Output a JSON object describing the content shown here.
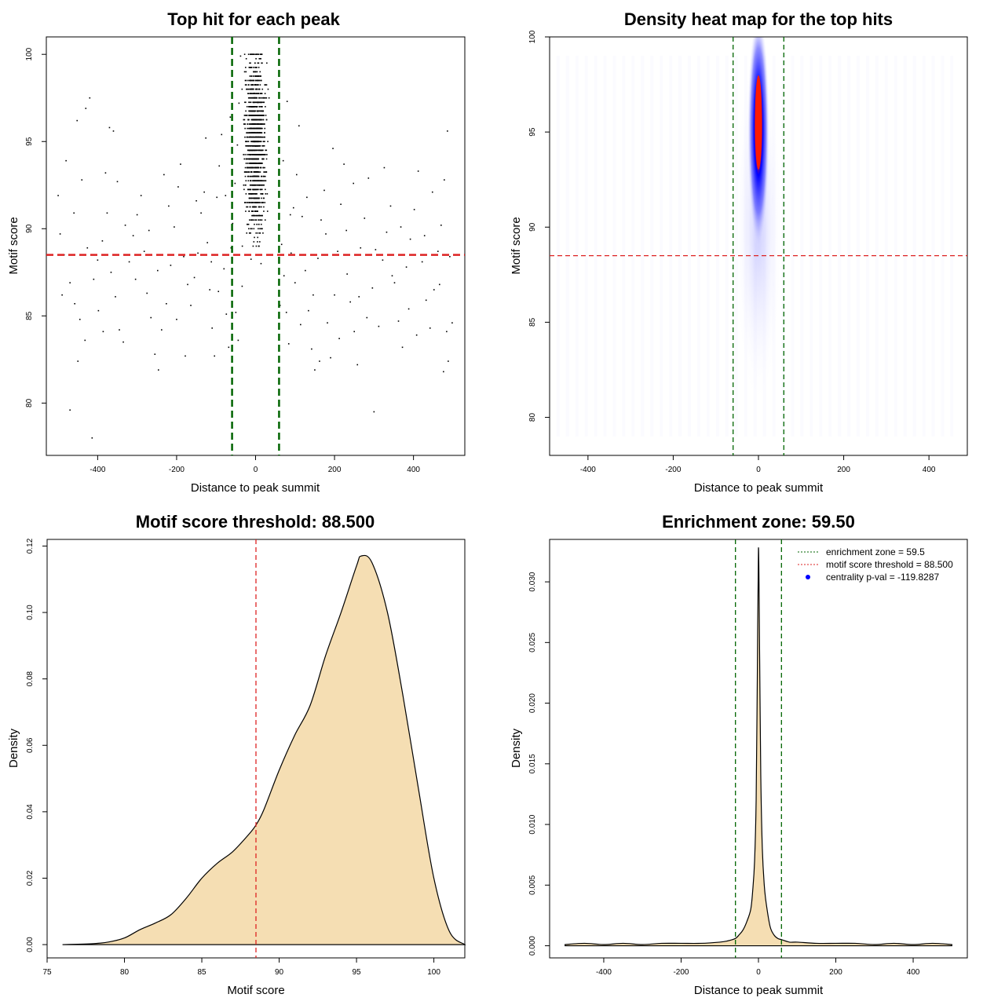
{
  "colors": {
    "zone_line": "#006400",
    "threshold_line": "#dd2222",
    "density_fill": "#f5deb3",
    "points": "#000000",
    "heat_low": "#ffffff",
    "heat_mid": "#0000ff",
    "heat_high": "#ff0000",
    "legend_dot": "#0000ff"
  },
  "chart_data": [
    {
      "type": "scatter",
      "title": "Top hit for each peak",
      "xlabel": "Distance to peak summit",
      "ylabel": "Motif score",
      "xlim": [
        -530,
        530
      ],
      "ylim": [
        77,
        101
      ],
      "xticks": [
        -400,
        -200,
        0,
        200,
        400
      ],
      "yticks": [
        80,
        85,
        90,
        95,
        100
      ],
      "vlines": [
        -59.5,
        59.5
      ],
      "hline": 88.5,
      "points": [
        [
          -470,
          79.6
        ],
        [
          -414,
          78
        ],
        [
          -450,
          82.4
        ],
        [
          -430,
          96.9
        ],
        [
          -420,
          97.5
        ],
        [
          -452,
          96.2
        ],
        [
          -380,
          93.2
        ],
        [
          -360,
          95.6
        ],
        [
          -370,
          95.8
        ],
        [
          -480,
          93.9
        ],
        [
          -500,
          91.9
        ],
        [
          -495,
          89.7
        ],
        [
          -485,
          88.5
        ],
        [
          -470,
          86.9
        ],
        [
          -458,
          85.7
        ],
        [
          -445,
          84.8
        ],
        [
          -432,
          83.6
        ],
        [
          -410,
          87.1
        ],
        [
          -400,
          88.2
        ],
        [
          -388,
          89.3
        ],
        [
          -376,
          90.9
        ],
        [
          -366,
          87.5
        ],
        [
          -355,
          86.1
        ],
        [
          -345,
          84.2
        ],
        [
          -335,
          83.5
        ],
        [
          -320,
          88.1
        ],
        [
          -310,
          89.6
        ],
        [
          -300,
          90.8
        ],
        [
          -290,
          91.9
        ],
        [
          -282,
          88.7
        ],
        [
          -275,
          86.3
        ],
        [
          -265,
          84.9
        ],
        [
          -255,
          82.8
        ],
        [
          -246,
          81.9
        ],
        [
          -238,
          84.2
        ],
        [
          -226,
          85.7
        ],
        [
          -215,
          87.9
        ],
        [
          -206,
          90.1
        ],
        [
          -196,
          92.4
        ],
        [
          -190,
          93.7
        ],
        [
          -182,
          88.4
        ],
        [
          -172,
          86.8
        ],
        [
          -164,
          85.6
        ],
        [
          -155,
          87.2
        ],
        [
          -146,
          88.6
        ],
        [
          -138,
          90.9
        ],
        [
          -130,
          92.1
        ],
        [
          -122,
          89.2
        ],
        [
          -116,
          86.5
        ],
        [
          -110,
          84.3
        ],
        [
          -104,
          82.7
        ],
        [
          -98,
          91.8
        ],
        [
          -92,
          93.6
        ],
        [
          -86,
          95.4
        ],
        [
          -80,
          87.7
        ],
        [
          -74,
          85.1
        ],
        [
          -68,
          83.2
        ],
        [
          -62,
          88.9
        ],
        [
          -58,
          90.3
        ],
        [
          -52,
          92.6
        ],
        [
          -46,
          94.8
        ],
        [
          -42,
          97.2
        ],
        [
          -38,
          99.9
        ],
        [
          -34,
          86.7
        ],
        [
          60,
          91.5
        ],
        [
          66,
          89.1
        ],
        [
          72,
          87.3
        ],
        [
          78,
          85.2
        ],
        [
          84,
          83.4
        ],
        [
          90,
          88.6
        ],
        [
          96,
          91.2
        ],
        [
          104,
          93.1
        ],
        [
          110,
          95.9
        ],
        [
          118,
          90.7
        ],
        [
          126,
          87.6
        ],
        [
          134,
          85.3
        ],
        [
          142,
          83.1
        ],
        [
          150,
          81.9
        ],
        [
          158,
          88.3
        ],
        [
          166,
          90.5
        ],
        [
          174,
          92.2
        ],
        [
          182,
          84.6
        ],
        [
          190,
          82.6
        ],
        [
          200,
          86.2
        ],
        [
          208,
          88.7
        ],
        [
          216,
          91.4
        ],
        [
          224,
          93.7
        ],
        [
          232,
          87.4
        ],
        [
          240,
          85.8
        ],
        [
          250,
          84.1
        ],
        [
          258,
          82.2
        ],
        [
          266,
          88.9
        ],
        [
          276,
          90.6
        ],
        [
          286,
          92.9
        ],
        [
          296,
          86.6
        ],
        [
          300,
          79.5
        ],
        [
          312,
          84.4
        ],
        [
          322,
          88.2
        ],
        [
          332,
          89.8
        ],
        [
          342,
          91.3
        ],
        [
          352,
          86.9
        ],
        [
          362,
          84.7
        ],
        [
          372,
          83.2
        ],
        [
          382,
          87.8
        ],
        [
          392,
          89.4
        ],
        [
          402,
          91.1
        ],
        [
          412,
          93.3
        ],
        [
          422,
          88.1
        ],
        [
          432,
          85.9
        ],
        [
          442,
          84.3
        ],
        [
          452,
          86.5
        ],
        [
          462,
          88.7
        ],
        [
          470,
          90.2
        ],
        [
          478,
          92.8
        ],
        [
          486,
          95.6
        ],
        [
          492,
          88.4
        ],
        [
          498,
          84.6
        ],
        [
          488,
          82.4
        ],
        [
          476,
          81.8
        ],
        [
          -490,
          86.2
        ],
        [
          -460,
          90.9
        ],
        [
          -440,
          92.8
        ],
        [
          -426,
          88.9
        ],
        [
          -398,
          85.3
        ],
        [
          -386,
          84.1
        ],
        [
          -350,
          92.7
        ],
        [
          -330,
          90.2
        ],
        [
          -304,
          87.1
        ],
        [
          -270,
          89.9
        ],
        [
          -248,
          87.6
        ],
        [
          -232,
          93.1
        ],
        [
          -220,
          91.3
        ],
        [
          -200,
          84.8
        ],
        [
          -178,
          82.7
        ],
        [
          -150,
          91.6
        ],
        [
          -126,
          95.2
        ],
        [
          -112,
          88.1
        ],
        [
          -94,
          86.4
        ],
        [
          -76,
          91.9
        ],
        [
          -64,
          96.4
        ],
        [
          -50,
          85.2
        ],
        [
          -44,
          83.6
        ],
        [
          62,
          85.6
        ],
        [
          70,
          93.9
        ],
        [
          80,
          97.3
        ],
        [
          88,
          90.8
        ],
        [
          100,
          86.9
        ],
        [
          114,
          84.5
        ],
        [
          130,
          91.8
        ],
        [
          146,
          86.2
        ],
        [
          162,
          82.4
        ],
        [
          178,
          89.7
        ],
        [
          196,
          94.6
        ],
        [
          212,
          83.7
        ],
        [
          230,
          89.9
        ],
        [
          248,
          92.6
        ],
        [
          262,
          86.1
        ],
        [
          282,
          84.9
        ],
        [
          304,
          88.8
        ],
        [
          326,
          93.5
        ],
        [
          346,
          87.3
        ],
        [
          368,
          90.1
        ],
        [
          388,
          85.4
        ],
        [
          408,
          83.9
        ],
        [
          428,
          89.6
        ],
        [
          448,
          92.1
        ],
        [
          466,
          86.8
        ],
        [
          484,
          84.1
        ]
      ],
      "core_band": {
        "x_range": [
          -20,
          20
        ],
        "y_range": [
          81,
          100
        ],
        "peak_y": 95
      }
    },
    {
      "type": "heatmap",
      "title": "Density heat map for the top hits",
      "xlabel": "Distance to peak summit",
      "ylabel": "Motif score",
      "xlim": [
        -490,
        490
      ],
      "ylim": [
        78,
        100
      ],
      "xticks": [
        -400,
        -200,
        0,
        200,
        400
      ],
      "yticks": [
        80,
        85,
        90,
        95,
        100
      ],
      "vlines": [
        -59.5,
        59.5
      ],
      "hline": 88.5,
      "hotspot": {
        "x": 0,
        "y": 95.5
      }
    },
    {
      "type": "area",
      "title": "Motif score threshold: 88.500",
      "xlabel": "Motif score",
      "ylabel": "Density",
      "xlim": [
        75,
        102
      ],
      "ylim": [
        -0.004,
        0.122
      ],
      "xticks": [
        75,
        80,
        85,
        90,
        95,
        100
      ],
      "yticks": [
        0.0,
        0.02,
        0.04,
        0.06,
        0.08,
        0.1,
        0.12
      ],
      "vline": 88.5,
      "x": [
        76,
        78,
        79,
        80,
        81,
        82,
        83,
        84,
        85,
        86,
        87,
        88,
        88.5,
        89,
        90,
        91,
        92,
        93,
        94,
        95,
        95.3,
        96,
        97,
        98,
        99,
        100,
        101,
        102
      ],
      "y": [
        0.0,
        0.0003,
        0.0008,
        0.002,
        0.0045,
        0.0065,
        0.009,
        0.014,
        0.02,
        0.0245,
        0.028,
        0.033,
        0.036,
        0.0405,
        0.0525,
        0.063,
        0.072,
        0.087,
        0.1,
        0.114,
        0.117,
        0.115,
        0.1,
        0.075,
        0.047,
        0.02,
        0.004,
        0.0
      ]
    },
    {
      "type": "area",
      "title": "Enrichment zone: 59.50",
      "xlabel": "Distance to peak summit",
      "ylabel": "Density",
      "xlim": [
        -540,
        540
      ],
      "ylim": [
        -0.001,
        0.0335
      ],
      "xticks": [
        -400,
        -200,
        0,
        200,
        400
      ],
      "yticks": [
        0.0,
        0.005,
        0.01,
        0.015,
        0.02,
        0.025,
        0.03
      ],
      "vlines": [
        -59.5,
        59.5
      ],
      "x": [
        -500,
        -450,
        -400,
        -350,
        -300,
        -250,
        -200,
        -150,
        -100,
        -80,
        -60,
        -50,
        -40,
        -30,
        -20,
        -15,
        -10,
        -6,
        -3,
        0,
        3,
        6,
        10,
        15,
        20,
        30,
        40,
        50,
        60,
        80,
        100,
        150,
        200,
        250,
        300,
        350,
        400,
        450,
        500
      ],
      "y": [
        0.0001,
        0.0002,
        0.0001,
        0.0002,
        0.0001,
        0.0002,
        0.0002,
        0.0002,
        0.0003,
        0.0004,
        0.0006,
        0.0009,
        0.0013,
        0.002,
        0.003,
        0.0045,
        0.007,
        0.012,
        0.022,
        0.0328,
        0.024,
        0.014,
        0.008,
        0.005,
        0.0035,
        0.0016,
        0.0009,
        0.0006,
        0.0005,
        0.0003,
        0.0003,
        0.0002,
        0.0002,
        0.0002,
        0.0001,
        0.0002,
        0.0001,
        0.0002,
        0.0001
      ],
      "legend": [
        {
          "label": "enrichment zone = 59.5",
          "style": "dotted",
          "color": "#006400"
        },
        {
          "label": "motif score threshold = 88.500",
          "style": "dotted",
          "color": "#dd2222"
        },
        {
          "label": "centrality p-val = -119.8287",
          "style": "dot",
          "color": "#0000ff"
        }
      ]
    }
  ]
}
